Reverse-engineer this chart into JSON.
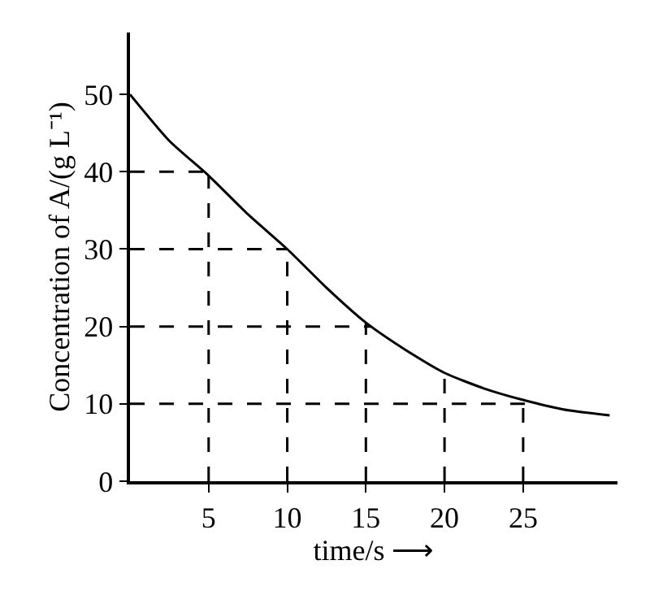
{
  "chart_data": {
    "type": "line",
    "xlabel": "time/s ⟶",
    "ylabel": "Concentration of A/(g L⁻¹)",
    "x": [
      0,
      2.5,
      5,
      7.5,
      10,
      12.5,
      15,
      17.5,
      20,
      22.5,
      25,
      27.5,
      30.5
    ],
    "series": [
      {
        "color": "#000000",
        "values": [
          50,
          44,
          39.5,
          34.5,
          30,
          25,
          20.5,
          17,
          14,
          12,
          10.5,
          9.3,
          8.5
        ]
      }
    ],
    "xlim": [
      0,
      31
    ],
    "xticks": [
      5,
      10,
      15,
      20,
      25
    ],
    "ylim": [
      0,
      58
    ],
    "yticks": [
      0,
      10,
      20,
      30,
      40,
      50
    ],
    "marker": "none",
    "line_style": "solid",
    "ref_lines": [
      {
        "axis": "y",
        "value": 40,
        "line_style": "dashed",
        "color": "#000000"
      },
      {
        "axis": "y",
        "value": 30,
        "line_style": "dashed",
        "color": "#000000"
      },
      {
        "axis": "y",
        "value": 20,
        "line_style": "dashed",
        "color": "#000000"
      },
      {
        "axis": "y",
        "value": 10,
        "line_style": "dashed",
        "color": "#000000"
      },
      {
        "axis": "x",
        "value": 5,
        "line_style": "dashed",
        "color": "#000000"
      },
      {
        "axis": "x",
        "value": 10,
        "line_style": "dashed",
        "color": "#000000"
      },
      {
        "axis": "x",
        "value": 15,
        "line_style": "dashed",
        "color": "#000000"
      },
      {
        "axis": "x",
        "value": 20,
        "line_style": "dashed",
        "color": "#000000"
      },
      {
        "axis": "x",
        "value": 25,
        "line_style": "dashed",
        "color": "#000000"
      }
    ]
  }
}
